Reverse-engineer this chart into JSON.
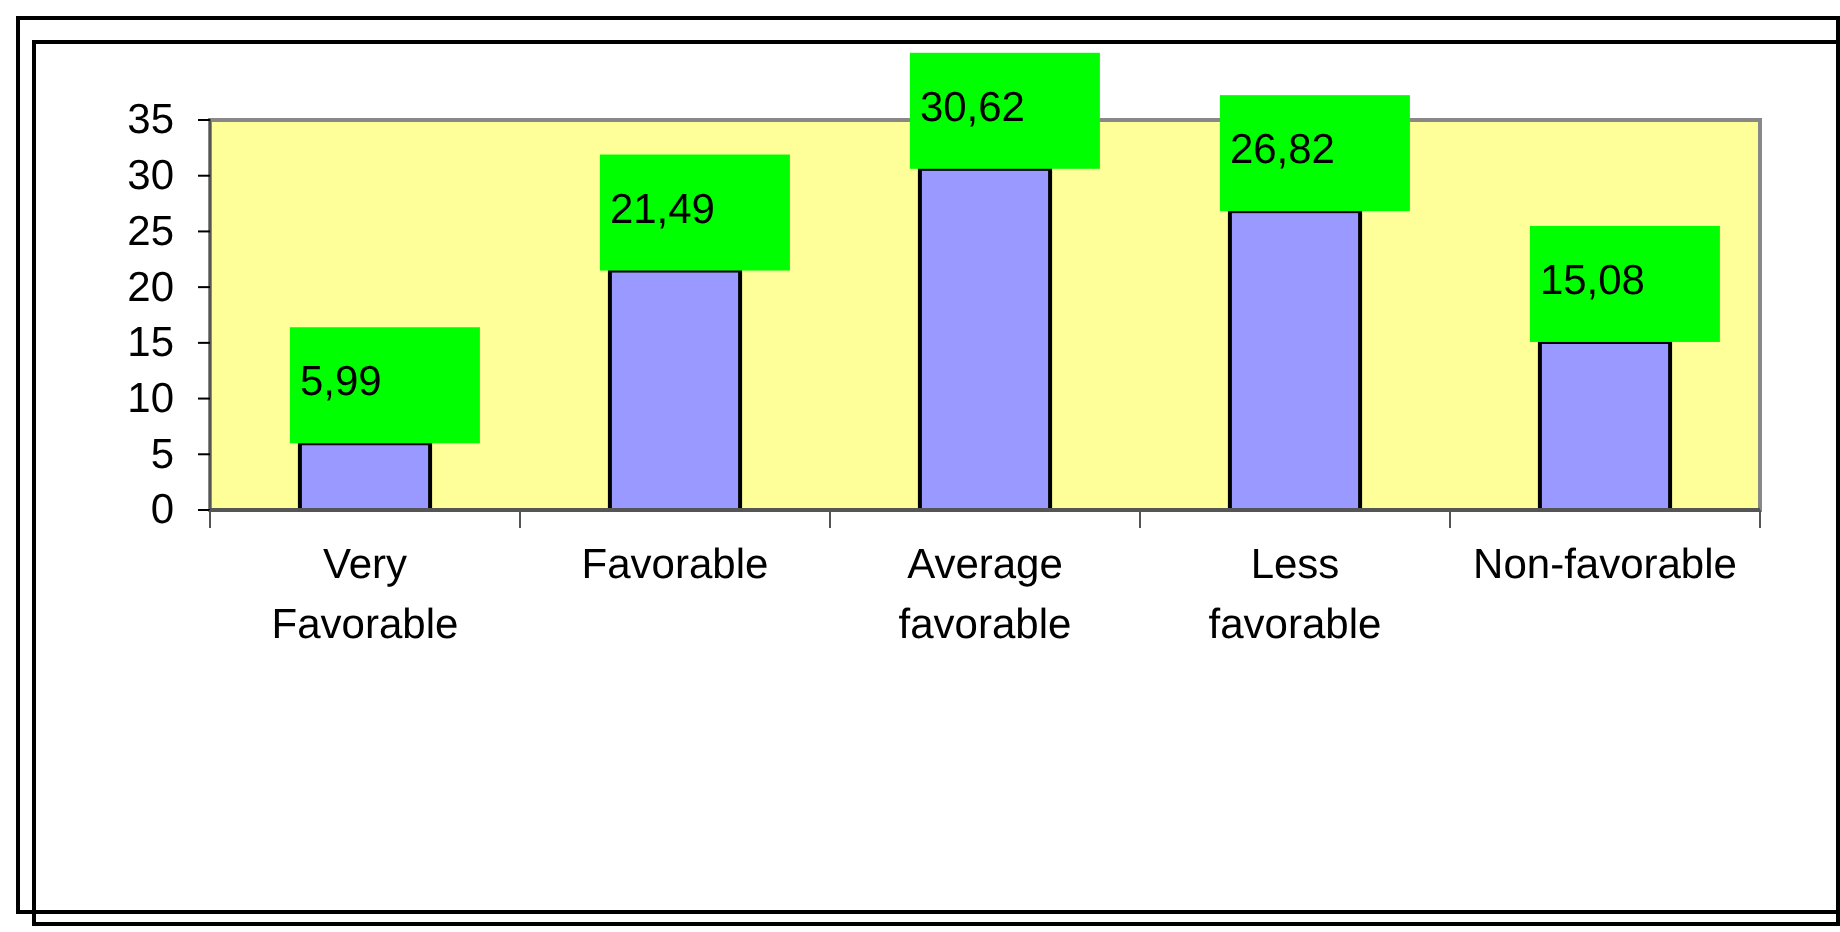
{
  "chart_data": {
    "type": "bar",
    "categories": [
      "Very Favorable",
      "Favorable",
      "Average favorable",
      "Less favorable",
      "Non-favorable"
    ],
    "values": [
      5.99,
      21.49,
      30.62,
      26.82,
      15.08
    ],
    "value_labels": [
      "5,99",
      "21,49",
      "30,62",
      "26,82",
      "15,08"
    ],
    "color": "#9999ff",
    "ylim": [
      0,
      35
    ],
    "yticks": [
      0,
      5,
      10,
      15,
      20,
      25,
      30,
      35
    ],
    "grid": false
  }
}
